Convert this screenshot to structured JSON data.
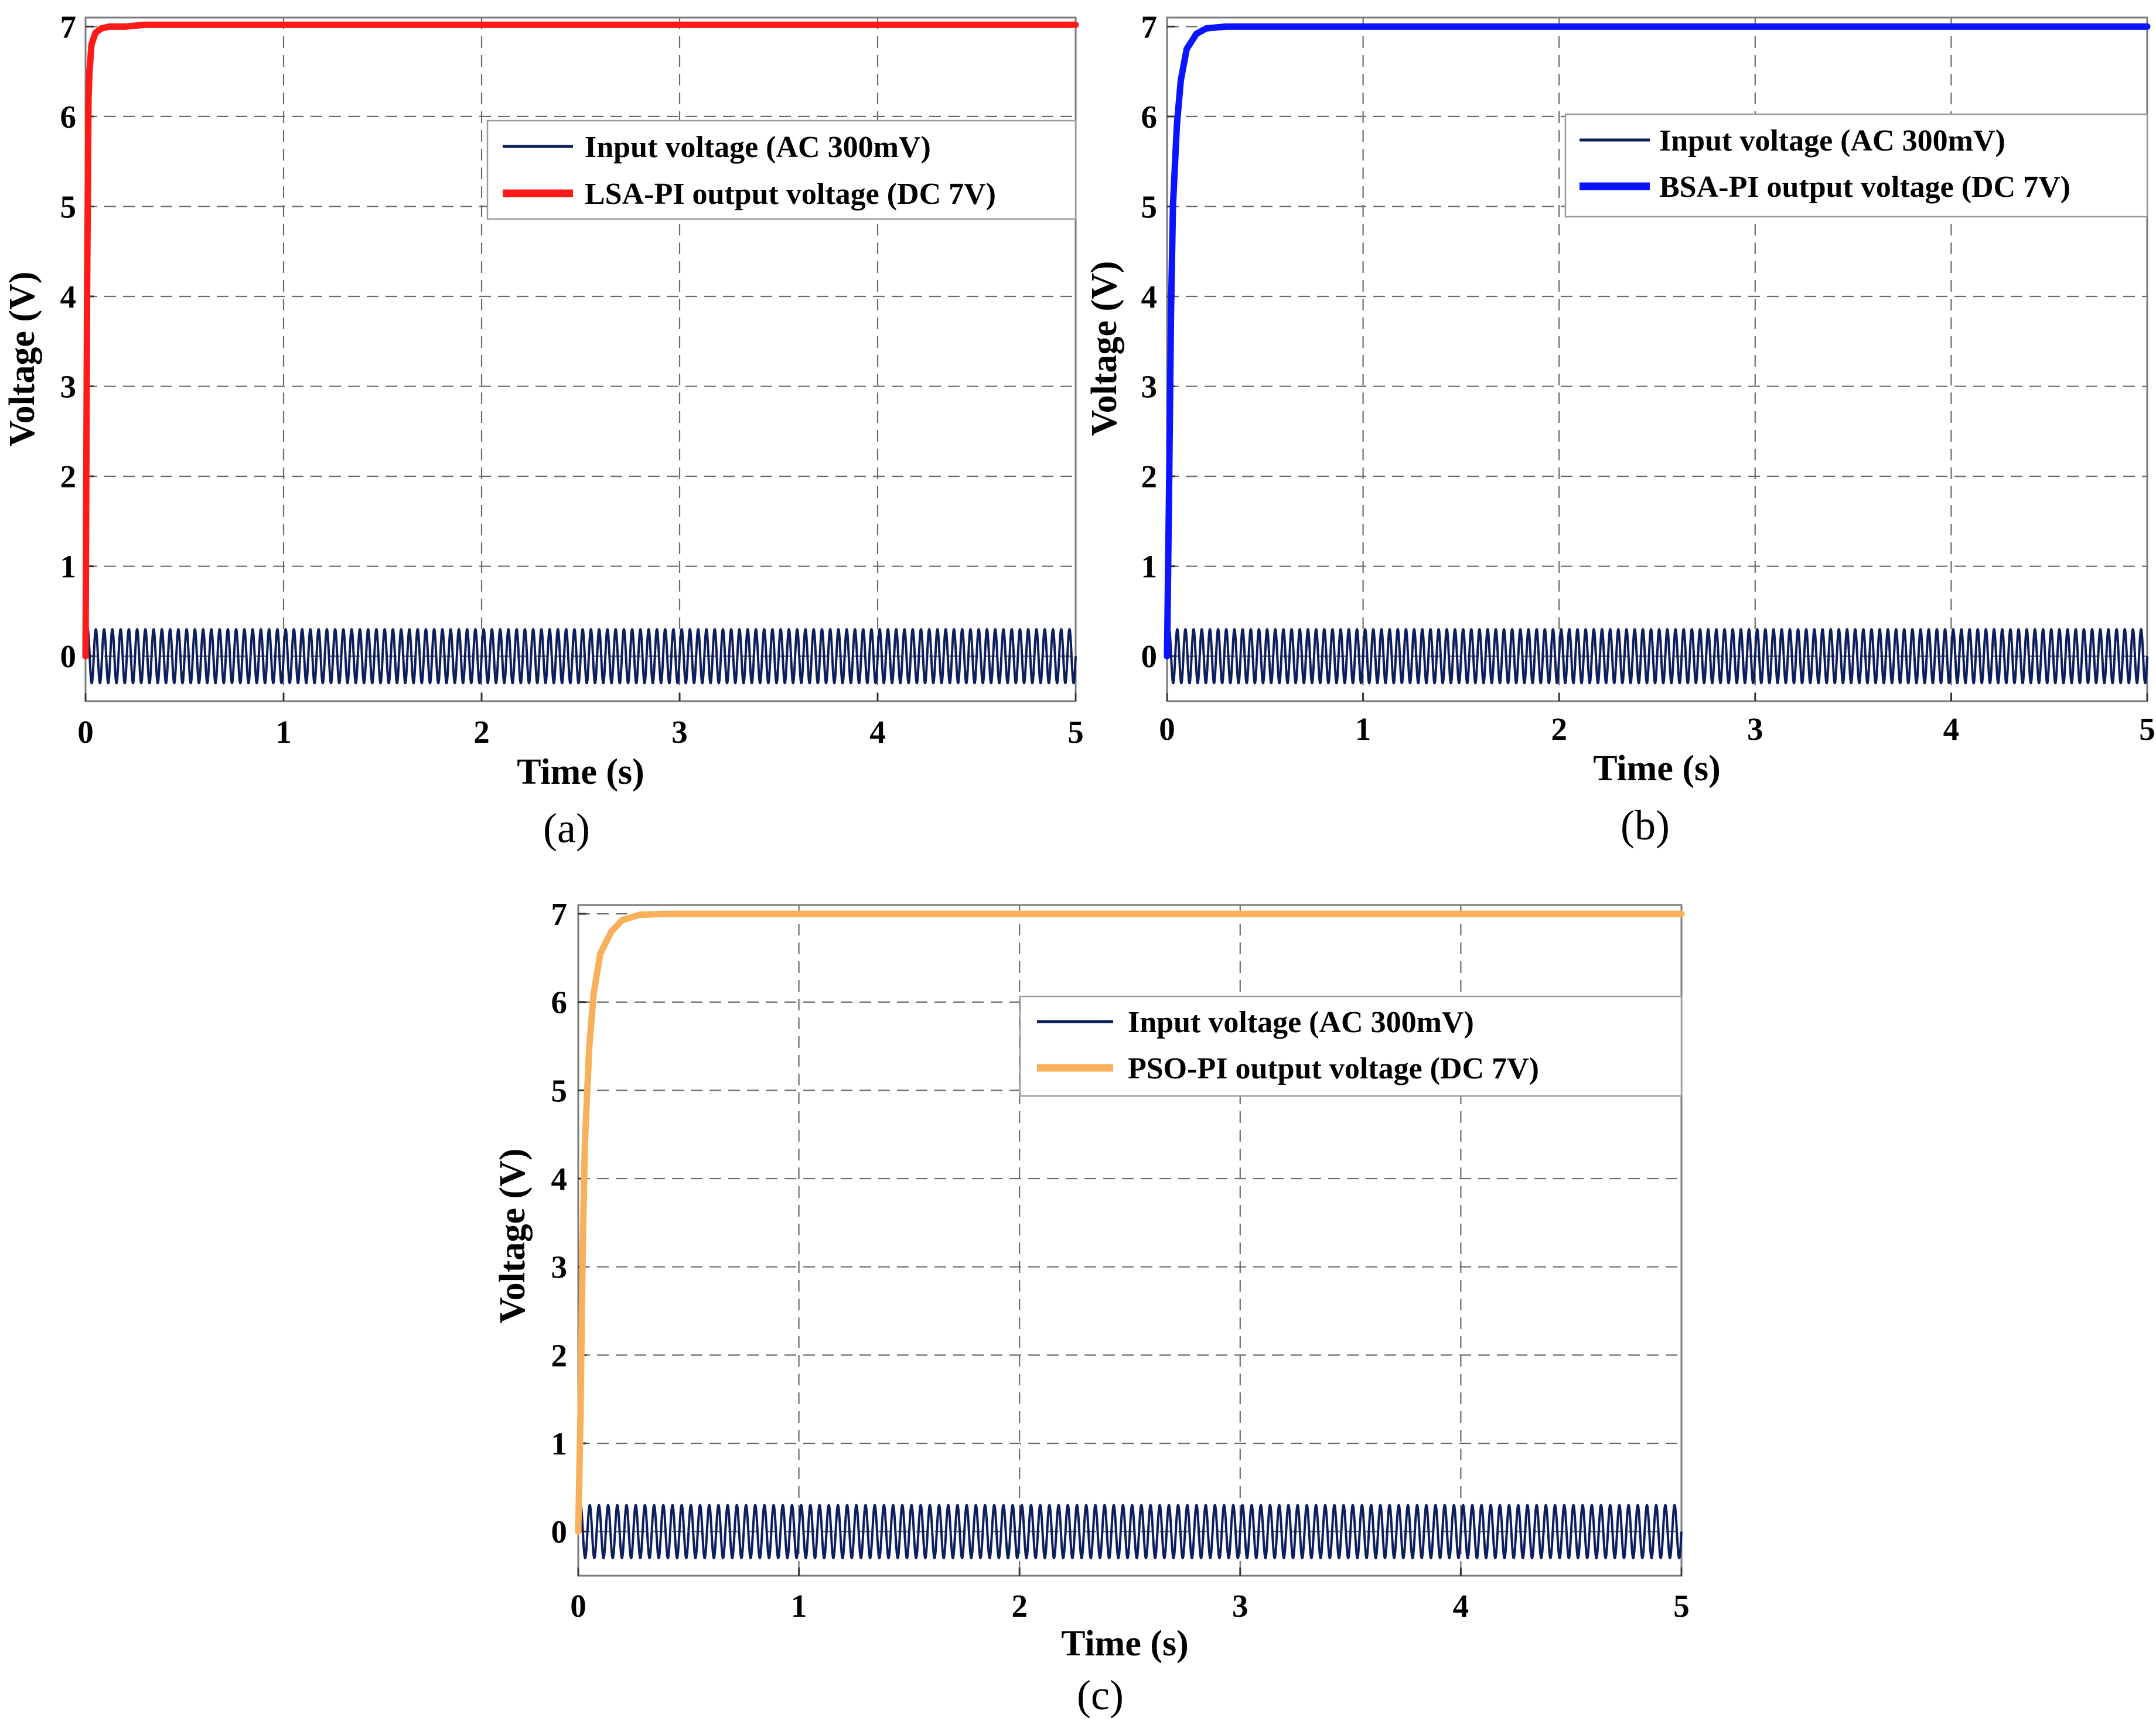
{
  "chart_data": [
    {
      "type": "line",
      "panel": "a",
      "caption": "(a)",
      "xlabel": "Time (s)",
      "ylabel": "Voltage (V)",
      "xlim": [
        0,
        5
      ],
      "ylim": [
        -0.5,
        7.1
      ],
      "x_ticks": [
        "0",
        "1",
        "2",
        "3",
        "4",
        "5"
      ],
      "y_ticks": [
        "0",
        "1",
        "2",
        "3",
        "4",
        "5",
        "6",
        "7"
      ],
      "grid": true,
      "legend_position": "upper-right",
      "series": [
        {
          "name": "Input voltage (AC 300mV)",
          "color": "#0d1e5e",
          "signal": "sine",
          "amplitude": 0.3,
          "offset": 0,
          "cycles": 120
        },
        {
          "name": "LSA-PI output voltage (DC 7V)",
          "color": "#ff1a1a",
          "signal": "step-response",
          "x": [
            0,
            0.008,
            0.015,
            0.02,
            0.03,
            0.05,
            0.08,
            0.12,
            0.2,
            0.3,
            5
          ],
          "y": [
            0,
            4.1,
            6.2,
            6.5,
            6.8,
            6.93,
            6.98,
            7.0,
            7.0,
            7.02,
            7.02
          ]
        }
      ]
    },
    {
      "type": "line",
      "panel": "b",
      "caption": "(b)",
      "xlabel": "Time (s)",
      "ylabel": "Voltage (V)",
      "xlim": [
        0,
        5
      ],
      "ylim": [
        -0.5,
        7.1
      ],
      "x_ticks": [
        "0",
        "1",
        "2",
        "3",
        "4",
        "5"
      ],
      "y_ticks": [
        "0",
        "1",
        "2",
        "3",
        "4",
        "5",
        "6",
        "7"
      ],
      "grid": true,
      "legend_position": "upper-right",
      "series": [
        {
          "name": "Input voltage (AC 300mV)",
          "color": "#0d1e5e",
          "signal": "sine",
          "amplitude": 0.3,
          "offset": 0,
          "cycles": 120
        },
        {
          "name": "BSA-PI output voltage (DC 7V)",
          "color": "#0a14ff",
          "signal": "step-response",
          "x": [
            0,
            0.01,
            0.02,
            0.03,
            0.05,
            0.07,
            0.1,
            0.15,
            0.2,
            0.3,
            5
          ],
          "y": [
            0,
            1.8,
            3.8,
            5.0,
            5.9,
            6.4,
            6.75,
            6.92,
            6.98,
            7.0,
            7.0
          ]
        }
      ]
    },
    {
      "type": "line",
      "panel": "c",
      "caption": "(c)",
      "xlabel": "Time (s)",
      "ylabel": "Voltage (V)",
      "xlim": [
        0,
        5
      ],
      "ylim": [
        -0.5,
        7.1
      ],
      "x_ticks": [
        "0",
        "1",
        "2",
        "3",
        "4",
        "5"
      ],
      "y_ticks": [
        "0",
        "1",
        "2",
        "3",
        "4",
        "5",
        "6",
        "7"
      ],
      "grid": true,
      "legend_position": "upper-right",
      "series": [
        {
          "name": "Input voltage (AC 300mV)",
          "color": "#0d1e5e",
          "signal": "sine",
          "amplitude": 0.3,
          "offset": 0,
          "cycles": 120
        },
        {
          "name": "PSO-PI output voltage (DC 7V)",
          "color": "#f9b05a",
          "signal": "step-response",
          "x": [
            0,
            0.01,
            0.02,
            0.03,
            0.05,
            0.07,
            0.1,
            0.15,
            0.2,
            0.28,
            0.4,
            0.8,
            5
          ],
          "y": [
            0,
            1.3,
            3.2,
            4.4,
            5.5,
            6.1,
            6.55,
            6.8,
            6.93,
            6.99,
            7.0,
            7.0,
            7.0
          ]
        }
      ]
    }
  ]
}
